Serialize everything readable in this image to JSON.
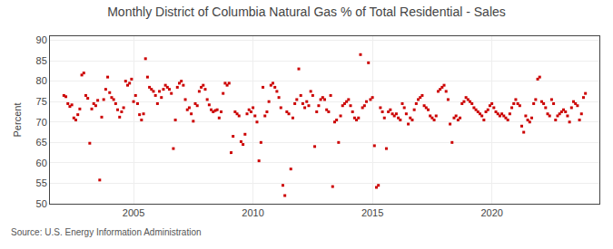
{
  "chart_data": {
    "type": "scatter",
    "title": "Monthly District of Columbia Natural Gas % of Total Residential - Sales",
    "y_label": "Percent",
    "annotations": [
      "Source: U.S. Energy Information Administration"
    ],
    "color": "#cc0000",
    "marker": "square",
    "grid": true,
    "xlim": [
      2001.5,
      2024.5
    ],
    "ylim": [
      50,
      91
    ],
    "xticks": [
      2005,
      2010,
      2015,
      2020
    ],
    "yticks": [
      50,
      55,
      60,
      65,
      70,
      75,
      80,
      85,
      90
    ],
    "x": [
      2002.0833,
      2002.1667,
      2002.25,
      2002.3333,
      2002.4167,
      2002.5,
      2002.5833,
      2002.6667,
      2002.75,
      2002.8333,
      2002.9167,
      2003.0,
      2003.0833,
      2003.1667,
      2003.25,
      2003.3333,
      2003.4167,
      2003.5,
      2003.5833,
      2003.6667,
      2003.75,
      2003.8333,
      2003.9167,
      2004.0,
      2004.0833,
      2004.1667,
      2004.25,
      2004.3333,
      2004.4167,
      2004.5,
      2004.5833,
      2004.6667,
      2004.75,
      2004.8333,
      2004.9167,
      2005.0,
      2005.0833,
      2005.1667,
      2005.25,
      2005.3333,
      2005.4167,
      2005.5,
      2005.5833,
      2005.6667,
      2005.75,
      2005.8333,
      2005.9167,
      2006.0,
      2006.0833,
      2006.1667,
      2006.25,
      2006.3333,
      2006.4167,
      2006.5,
      2006.5833,
      2006.6667,
      2006.75,
      2006.8333,
      2006.9167,
      2007.0,
      2007.0833,
      2007.1667,
      2007.25,
      2007.3333,
      2007.4167,
      2007.5,
      2007.5833,
      2007.6667,
      2007.75,
      2007.8333,
      2007.9167,
      2008.0,
      2008.0833,
      2008.1667,
      2008.25,
      2008.3333,
      2008.4167,
      2008.5,
      2008.5833,
      2008.6667,
      2008.75,
      2008.8333,
      2008.9167,
      2009.0,
      2009.0833,
      2009.1667,
      2009.25,
      2009.3333,
      2009.4167,
      2009.5,
      2009.5833,
      2009.6667,
      2009.75,
      2009.8333,
      2009.9167,
      2010.0,
      2010.0833,
      2010.1667,
      2010.25,
      2010.3333,
      2010.4167,
      2010.5,
      2010.5833,
      2010.6667,
      2010.75,
      2010.8333,
      2010.9167,
      2011.0,
      2011.0833,
      2011.1667,
      2011.25,
      2011.3333,
      2011.4167,
      2011.5,
      2011.5833,
      2011.6667,
      2011.75,
      2011.8333,
      2011.9167,
      2012.0,
      2012.0833,
      2012.1667,
      2012.25,
      2012.3333,
      2012.4167,
      2012.5,
      2012.5833,
      2012.6667,
      2012.75,
      2012.8333,
      2012.9167,
      2013.0,
      2013.0833,
      2013.1667,
      2013.25,
      2013.3333,
      2013.4167,
      2013.5,
      2013.5833,
      2013.6667,
      2013.75,
      2013.8333,
      2013.9167,
      2014.0,
      2014.0833,
      2014.1667,
      2014.25,
      2014.3333,
      2014.4167,
      2014.5,
      2014.5833,
      2014.6667,
      2014.75,
      2014.8333,
      2014.9167,
      2015.0,
      2015.0833,
      2015.1667,
      2015.25,
      2015.3333,
      2015.4167,
      2015.5,
      2015.5833,
      2015.6667,
      2015.75,
      2015.8333,
      2015.9167,
      2016.0,
      2016.0833,
      2016.1667,
      2016.25,
      2016.3333,
      2016.4167,
      2016.5,
      2016.5833,
      2016.6667,
      2016.75,
      2016.8333,
      2016.9167,
      2017.0,
      2017.0833,
      2017.1667,
      2017.25,
      2017.3333,
      2017.4167,
      2017.5,
      2017.5833,
      2017.6667,
      2017.75,
      2017.8333,
      2017.9167,
      2018.0,
      2018.0833,
      2018.1667,
      2018.25,
      2018.3333,
      2018.4167,
      2018.5,
      2018.5833,
      2018.6667,
      2018.75,
      2018.8333,
      2018.9167,
      2019.0,
      2019.0833,
      2019.1667,
      2019.25,
      2019.3333,
      2019.4167,
      2019.5,
      2019.5833,
      2019.6667,
      2019.75,
      2019.8333,
      2019.9167,
      2020.0,
      2020.0833,
      2020.1667,
      2020.25,
      2020.3333,
      2020.4167,
      2020.5,
      2020.5833,
      2020.6667,
      2020.75,
      2020.8333,
      2020.9167,
      2021.0,
      2021.0833,
      2021.1667,
      2021.25,
      2021.3333,
      2021.4167,
      2021.5,
      2021.5833,
      2021.6667,
      2021.75,
      2021.8333,
      2021.9167,
      2022.0,
      2022.0833,
      2022.1667,
      2022.25,
      2022.3333,
      2022.4167,
      2022.5,
      2022.5833,
      2022.6667,
      2022.75,
      2022.8333,
      2022.9167,
      2023.0,
      2023.0833,
      2023.1667,
      2023.25,
      2023.3333,
      2023.4167,
      2023.5,
      2023.5833,
      2023.6667,
      2023.75,
      2023.8333,
      2023.9167
    ],
    "values": [
      76.5,
      76.2,
      74.5,
      73.8,
      74.2,
      71.0,
      70.5,
      71.8,
      73.2,
      81.5,
      82.0,
      76.5,
      75.8,
      64.8,
      73.2,
      74.5,
      74.0,
      75.3,
      55.8,
      71.2,
      75.5,
      78.0,
      81.0,
      77.2,
      76.0,
      75.5,
      74.5,
      73.0,
      71.2,
      72.5,
      73.5,
      80.0,
      79.0,
      79.5,
      80.5,
      75.0,
      76.5,
      74.5,
      71.8,
      70.5,
      72.0,
      85.5,
      81.0,
      78.5,
      78.0,
      77.5,
      76.5,
      74.5,
      77.5,
      76.0,
      78.0,
      79.0,
      78.5,
      78.0,
      77.0,
      63.5,
      70.5,
      78.5,
      79.5,
      80.0,
      79.0,
      75.5,
      73.0,
      73.5,
      72.0,
      70.2,
      74.5,
      74.0,
      77.5,
      78.5,
      79.0,
      78.0,
      75.5,
      74.2,
      73.0,
      72.5,
      72.8,
      73.0,
      71.0,
      72.5,
      77.0,
      79.5,
      79.0,
      79.5,
      62.5,
      66.5,
      72.5,
      72.0,
      71.5,
      65.2,
      64.5,
      67.0,
      72.0,
      73.0,
      72.5,
      73.5,
      71.5,
      70.0,
      60.5,
      65.0,
      78.5,
      71.5,
      72.5,
      75.0,
      79.0,
      79.5,
      78.5,
      77.5,
      76.0,
      73.5,
      54.5,
      52.0,
      72.5,
      72.0,
      58.5,
      71.0,
      74.5,
      75.5,
      83.0,
      76.5,
      74.5,
      73.5,
      75.0,
      74.0,
      77.5,
      76.5,
      64.0,
      72.5,
      74.0,
      75.5,
      76.0,
      75.5,
      73.0,
      72.5,
      76.5,
      54.2,
      70.0,
      70.5,
      65.0,
      71.5,
      74.0,
      74.5,
      75.0,
      75.5,
      74.0,
      72.5,
      71.0,
      70.5,
      71.0,
      86.5,
      73.5,
      74.0,
      75.0,
      84.5,
      75.5,
      76.0,
      64.2,
      54.0,
      54.5,
      73.5,
      72.5,
      71.0,
      63.5,
      72.5,
      73.0,
      72.0,
      71.5,
      72.0,
      71.0,
      70.5,
      74.5,
      73.5,
      72.0,
      69.5,
      71.0,
      70.5,
      73.0,
      74.5,
      75.5,
      76.0,
      76.5,
      74.0,
      73.5,
      73.0,
      71.5,
      71.0,
      70.5,
      71.5,
      77.5,
      78.0,
      78.5,
      79.0,
      77.5,
      75.5,
      69.5,
      65.0,
      71.0,
      71.5,
      70.5,
      71.0,
      74.5,
      75.0,
      76.0,
      75.5,
      75.0,
      74.5,
      73.5,
      73.0,
      72.5,
      72.0,
      71.5,
      70.5,
      72.5,
      73.0,
      74.0,
      74.5,
      73.5,
      72.5,
      72.0,
      71.5,
      72.0,
      71.5,
      71.0,
      70.5,
      72.0,
      73.5,
      74.5,
      75.5,
      74.5,
      74.0,
      69.0,
      67.5,
      71.5,
      70.5,
      70.0,
      71.0,
      74.5,
      75.5,
      80.5,
      81.0,
      75.0,
      74.5,
      73.5,
      72.0,
      71.5,
      75.5,
      74.5,
      70.5,
      71.5,
      72.0,
      72.5,
      73.0,
      72.5,
      71.5,
      70.0,
      73.5,
      75.0,
      74.5,
      74.0,
      70.5,
      72.0,
      76.0,
      77.0
    ]
  }
}
